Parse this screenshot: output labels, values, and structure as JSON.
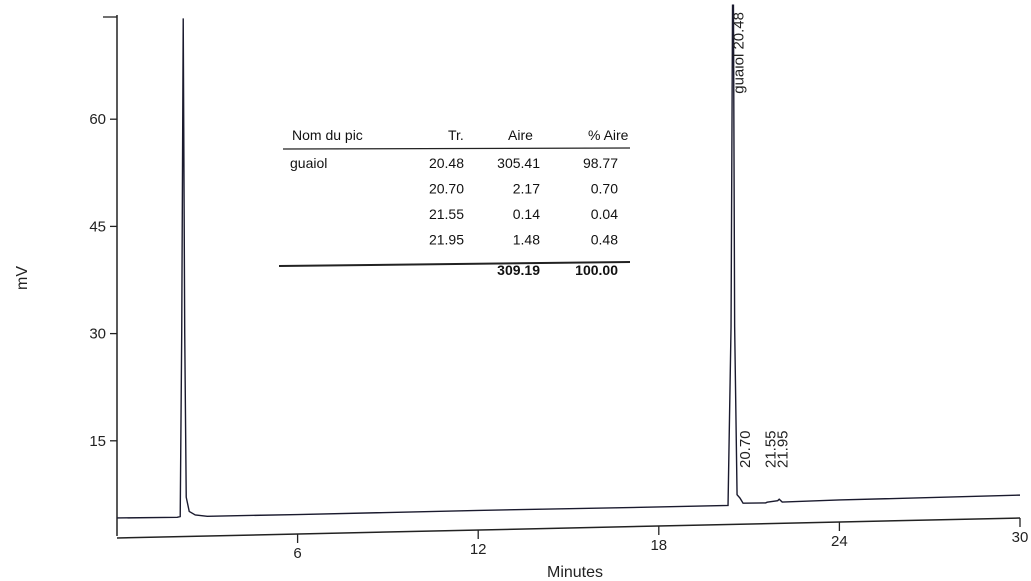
{
  "chart_data": {
    "type": "line",
    "xlabel": "Minutes",
    "ylabel": "mV",
    "xlim": [
      0,
      30
    ],
    "ylim": [
      0,
      75
    ],
    "x_ticks": [
      "6",
      "12",
      "18",
      "24",
      "30"
    ],
    "y_ticks": [
      "15",
      "30",
      "45",
      "60"
    ],
    "grid": false,
    "series": [
      {
        "x": [
          0,
          2.0,
          2.1,
          2.15,
          2.2,
          2.25,
          2.3,
          2.4,
          2.6,
          3.0,
          6,
          12,
          18,
          20.3,
          20.4,
          20.45,
          20.48,
          20.52,
          20.6,
          20.7,
          20.8,
          21.55,
          21.6,
          21.95,
          22.0,
          22.1,
          24,
          30
        ],
        "y": [
          4.2,
          4.2,
          4.3,
          30,
          74,
          30,
          7,
          5.0,
          4.5,
          4.3,
          4.4,
          4.7,
          4.9,
          5.0,
          30,
          75,
          75,
          30,
          6.5,
          6.0,
          5.3,
          5.3,
          5.4,
          5.6,
          5.8,
          5.4,
          5.6,
          6.0
        ]
      }
    ],
    "peak_labels": [
      {
        "text": "guaiol 20.48",
        "x": 20.48
      },
      {
        "text": "20.70",
        "x": 20.7
      },
      {
        "text": "21.55",
        "x": 21.55
      },
      {
        "text": "21.95",
        "x": 21.95
      }
    ],
    "table": {
      "headers": [
        "Nom du pic",
        "Tr.",
        "Aire",
        "% Aire"
      ],
      "rows": [
        [
          "guaiol",
          "20.48",
          "305.41",
          "98.77"
        ],
        [
          "",
          "20.70",
          "2.17",
          "0.70"
        ],
        [
          "",
          "21.55",
          "0.14",
          "0.04"
        ],
        [
          "",
          "21.95",
          "1.48",
          "0.48"
        ]
      ],
      "totals": [
        "",
        "",
        "309.19",
        "100.00"
      ]
    }
  }
}
